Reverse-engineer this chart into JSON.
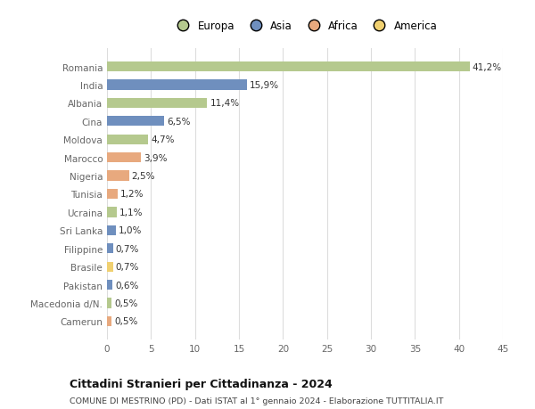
{
  "categories": [
    "Romania",
    "India",
    "Albania",
    "Cina",
    "Moldova",
    "Marocco",
    "Nigeria",
    "Tunisia",
    "Ucraina",
    "Sri Lanka",
    "Filippine",
    "Brasile",
    "Pakistan",
    "Macedonia d/N.",
    "Camerun"
  ],
  "values": [
    41.2,
    15.9,
    11.4,
    6.5,
    4.7,
    3.9,
    2.5,
    1.2,
    1.1,
    1.0,
    0.7,
    0.7,
    0.6,
    0.5,
    0.5
  ],
  "labels": [
    "41,2%",
    "15,9%",
    "11,4%",
    "6,5%",
    "4,7%",
    "3,9%",
    "2,5%",
    "1,2%",
    "1,1%",
    "1,0%",
    "0,7%",
    "0,7%",
    "0,6%",
    "0,5%",
    "0,5%"
  ],
  "colors": [
    "#b5c98e",
    "#6f8fbe",
    "#b5c98e",
    "#6f8fbe",
    "#b5c98e",
    "#e8a97e",
    "#e8a97e",
    "#e8a97e",
    "#b5c98e",
    "#6f8fbe",
    "#6f8fbe",
    "#f0d070",
    "#6f8fbe",
    "#b5c98e",
    "#e8a97e"
  ],
  "legend_labels": [
    "Europa",
    "Asia",
    "Africa",
    "America"
  ],
  "legend_colors": [
    "#b5c98e",
    "#6f8fbe",
    "#e8a97e",
    "#f0d070"
  ],
  "xlim": [
    0,
    45
  ],
  "xticks": [
    0,
    5,
    10,
    15,
    20,
    25,
    30,
    35,
    40,
    45
  ],
  "title": "Cittadini Stranieri per Cittadinanza - 2024",
  "subtitle": "COMUNE DI MESTRINO (PD) - Dati ISTAT al 1° gennaio 2024 - Elaborazione TUTTITALIA.IT",
  "bg_color": "#ffffff",
  "bar_height": 0.55,
  "grid_color": "#dddddd"
}
